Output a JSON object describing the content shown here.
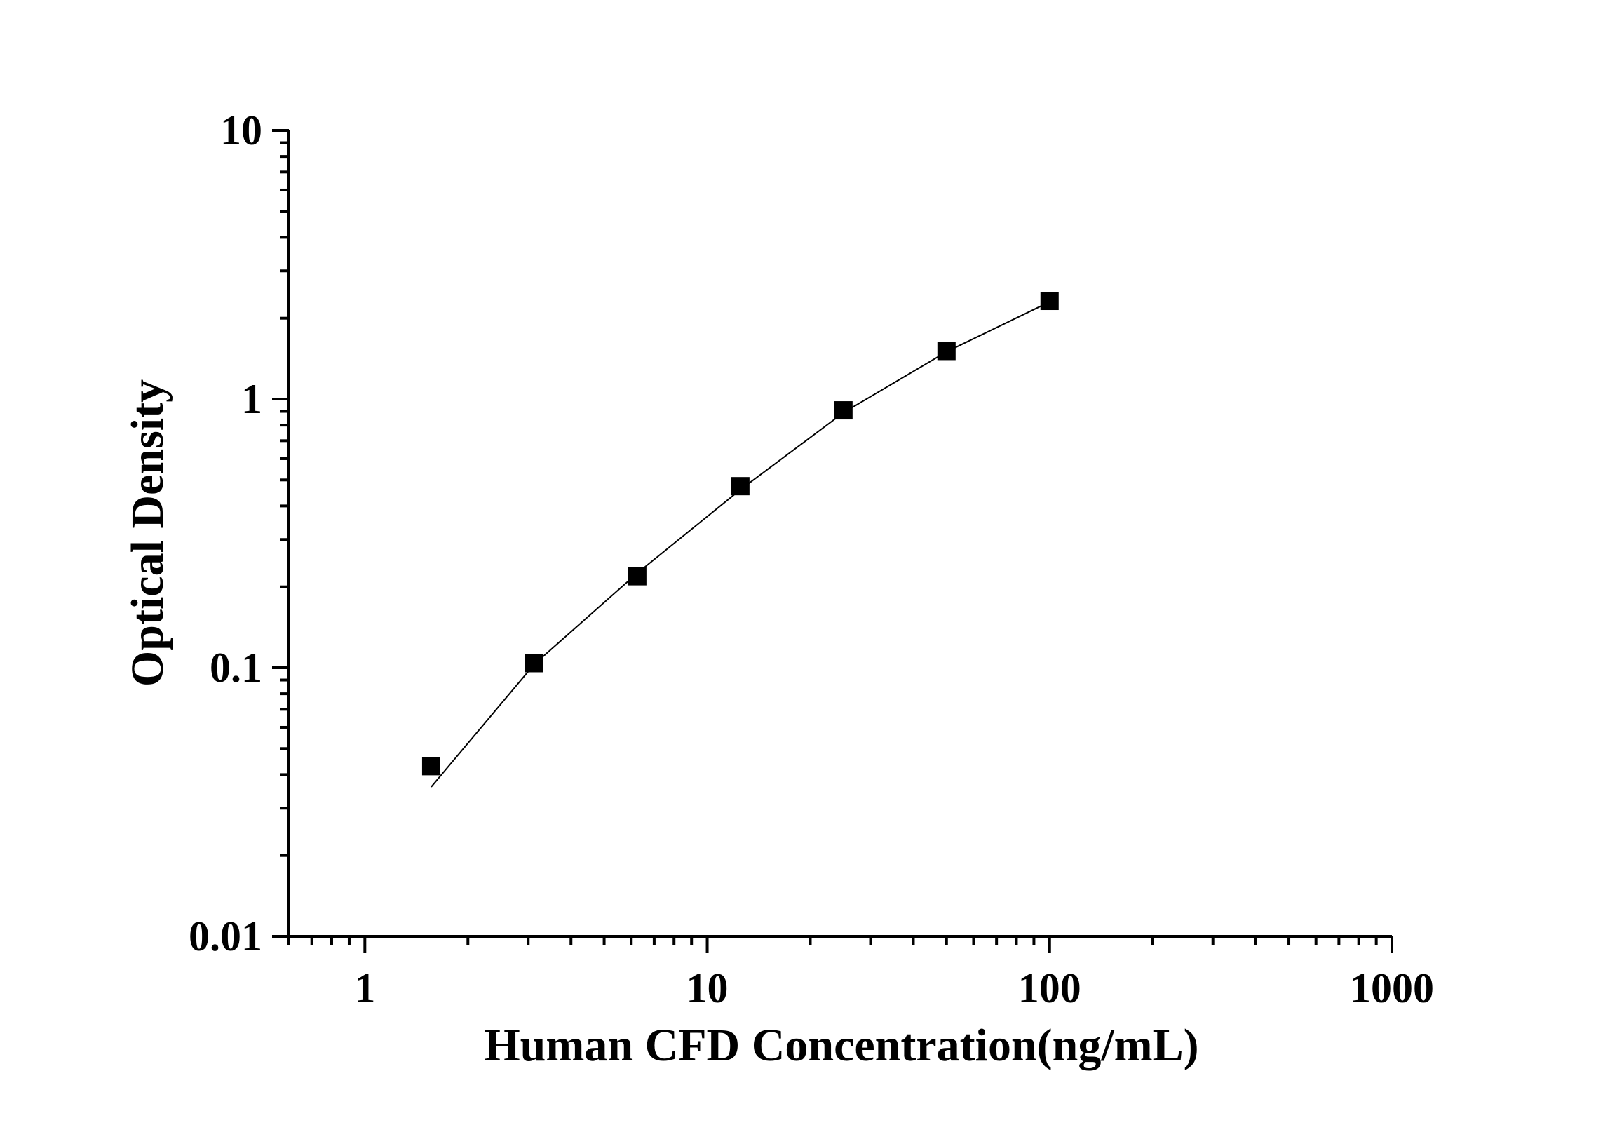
{
  "chart_data": {
    "type": "scatter",
    "title": "",
    "xlabel": "Human CFD Concentration(ng/mL)",
    "ylabel": "Optical Density",
    "x_scale": "log",
    "y_scale": "log",
    "xlim": [
      0.6,
      1000
    ],
    "ylim": [
      0.01,
      10
    ],
    "x_ticks": [
      "1",
      "10",
      "100",
      "1000"
    ],
    "y_ticks": [
      "0.01",
      "0.1",
      "1",
      "10"
    ],
    "grid": false,
    "legend": "none",
    "marker": "square",
    "color": "#000000",
    "series": [
      {
        "x": [
          1.5625,
          3.125,
          6.25,
          12.5,
          25,
          50,
          100
        ],
        "y": [
          0.043,
          0.104,
          0.219,
          0.474,
          0.908,
          1.51,
          2.32
        ]
      }
    ],
    "fit_line": {
      "x": [
        1.5625,
        3.125,
        6.25,
        12.5,
        25,
        50,
        100
      ],
      "y": [
        0.036,
        0.103,
        0.225,
        0.46,
        0.89,
        1.5,
        2.3
      ]
    }
  }
}
